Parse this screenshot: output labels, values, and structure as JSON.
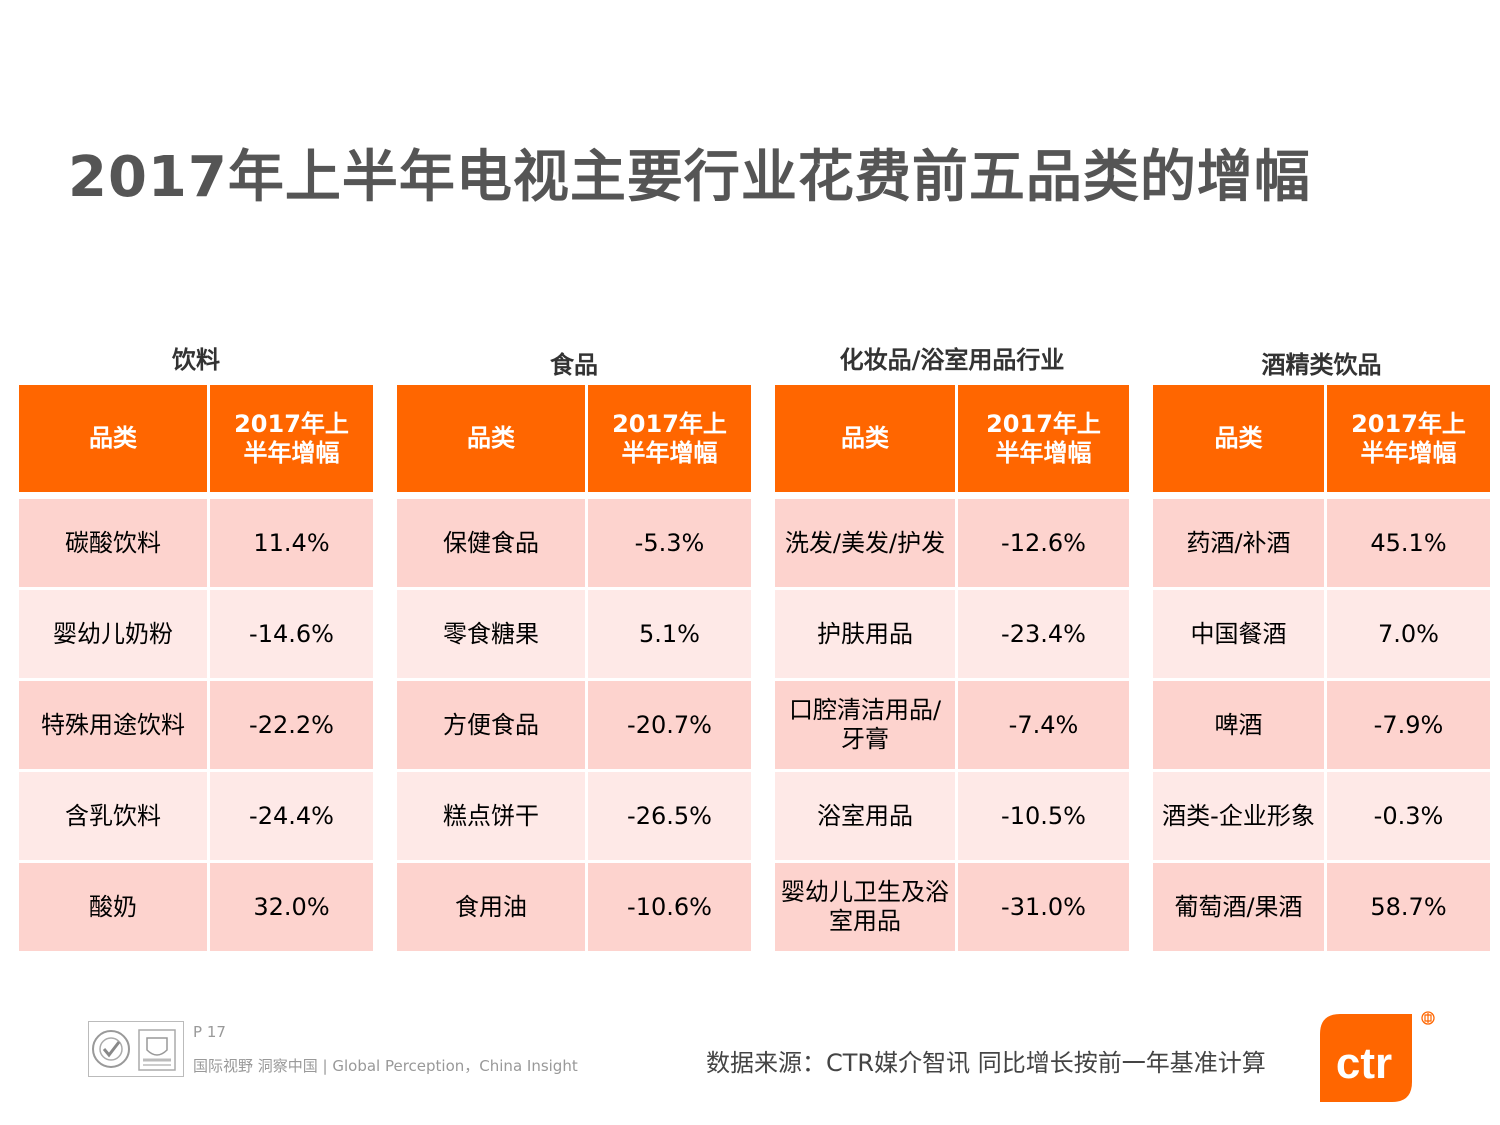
{
  "title": "2017年上半年电视主要行业花费前五品类的增幅",
  "chart_data": {
    "type": "table",
    "title": "2017年上半年电视主要行业花费前五品类的增幅",
    "tables": [
      {
        "name": "饮料",
        "headers": [
          "品类",
          "2017年上半年增幅"
        ],
        "rows": [
          {
            "category": "碳酸饮料",
            "value": "11.4%"
          },
          {
            "category": "婴幼儿奶粉",
            "value": "-14.6%"
          },
          {
            "category": "特殊用途饮料",
            "value": "-22.2%"
          },
          {
            "category": "含乳饮料",
            "value": "-24.4%"
          },
          {
            "category": "酸奶",
            "value": "32.0%"
          }
        ]
      },
      {
        "name": "食品",
        "headers": [
          "品类",
          "2017年上半年增幅"
        ],
        "rows": [
          {
            "category": "保健食品",
            "value": "-5.3%"
          },
          {
            "category": "零食糖果",
            "value": "5.1%"
          },
          {
            "category": "方便食品",
            "value": "-20.7%"
          },
          {
            "category": "糕点饼干",
            "value": "-26.5%"
          },
          {
            "category": "食用油",
            "value": "-10.6%"
          }
        ]
      },
      {
        "name": "化妆品/浴室用品行业",
        "headers": [
          "品类",
          "2017年上半年增幅"
        ],
        "rows": [
          {
            "category": "洗发/美发/护发",
            "value": "-12.6%"
          },
          {
            "category": "护肤用品",
            "value": "-23.4%"
          },
          {
            "category": "口腔清洁用品/牙膏",
            "value": "-7.4%"
          },
          {
            "category": "浴室用品",
            "value": "-10.5%"
          },
          {
            "category": "婴幼儿卫生及浴室用品",
            "value": "-31.0%"
          }
        ]
      },
      {
        "name": "酒精类饮品",
        "headers": [
          "品类",
          "2017年上半年增幅"
        ],
        "rows": [
          {
            "category": "药酒/补酒",
            "value": "45.1%"
          },
          {
            "category": "中国餐酒",
            "value": "7.0%"
          },
          {
            "category": "啤酒",
            "value": "-7.9%"
          },
          {
            "category": "酒类-企业形象",
            "value": "-0.3%"
          },
          {
            "category": "葡萄酒/果酒",
            "value": "58.7%"
          }
        ]
      }
    ]
  },
  "footer": {
    "page": "P 17",
    "slogan": "国际视野  洞察中国 |  Global Perception，China Insight",
    "source": "数据来源：CTR媒介智讯    同比增长按前一年基准计算",
    "logo_text": "ctr"
  },
  "colors": {
    "header": "#ff6600",
    "row_odd": "#fdd3ce",
    "row_even": "#fee9e7",
    "title": "#555555"
  }
}
